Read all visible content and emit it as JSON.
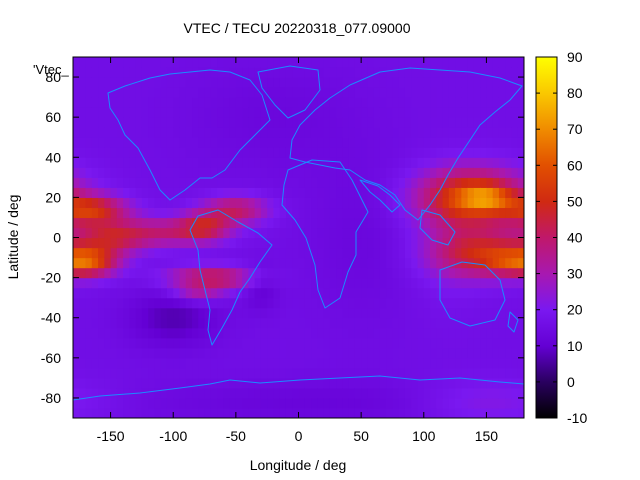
{
  "chart_data": {
    "type": "heatmap",
    "title": "VTEC / TECU 20220318_077.09000",
    "xlabel": "Longitude / deg",
    "ylabel": "Latitude / deg",
    "legend_label": "'Vtec_",
    "xlim": [
      -180,
      180
    ],
    "ylim": [
      -90,
      90
    ],
    "x_ticks": [
      -150,
      -100,
      -50,
      0,
      50,
      100,
      150
    ],
    "y_ticks": [
      -80,
      -60,
      -40,
      -20,
      0,
      20,
      40,
      60,
      80
    ],
    "colorbar": {
      "range": [
        -10,
        90
      ],
      "ticks": [
        -10,
        0,
        10,
        20,
        30,
        40,
        50,
        60,
        70,
        80,
        90
      ],
      "palette": [
        "#000000",
        "#2a0060",
        "#6400d4",
        "#7a18f0",
        "#a818b0",
        "#c0186a",
        "#d02a12",
        "#e25000",
        "#f08c00",
        "#fac800",
        "#ffff00"
      ]
    },
    "background_value": 16,
    "cell_size_deg": 5,
    "regions": [
      {
        "lon": -165,
        "lat": 14,
        "sx": 20,
        "sy": 5,
        "value": 32
      },
      {
        "lon": -168,
        "lat": -12,
        "sx": 16,
        "sy": 5,
        "value": 38
      },
      {
        "lon": -150,
        "lat": 0,
        "sx": 20,
        "sy": 6,
        "value": 24
      },
      {
        "lon": -105,
        "lat": 3,
        "sx": 28,
        "sy": 5,
        "value": 20
      },
      {
        "lon": -75,
        "lat": 6,
        "sx": 14,
        "sy": 5,
        "value": 22
      },
      {
        "lon": -50,
        "lat": 14,
        "sx": 18,
        "sy": 5,
        "value": 24
      },
      {
        "lon": -70,
        "lat": -20,
        "sx": 24,
        "sy": 4,
        "value": 28
      },
      {
        "lon": -80,
        "lat": -28,
        "sx": 14,
        "sy": 3,
        "value": 14
      },
      {
        "lon": 140,
        "lat": 20,
        "sx": 30,
        "sy": 10,
        "value": 42
      },
      {
        "lon": 150,
        "lat": 20,
        "sx": 14,
        "sy": 4,
        "value": 18
      },
      {
        "lon": 150,
        "lat": -8,
        "sx": 28,
        "sy": 8,
        "value": 32
      },
      {
        "lon": 165,
        "lat": -12,
        "sx": 12,
        "sy": 4,
        "value": 12
      },
      {
        "lon": 120,
        "lat": 0,
        "sx": 20,
        "sy": 20,
        "value": 6
      },
      {
        "lon": -100,
        "lat": -40,
        "sx": 25,
        "sy": 10,
        "value": -9
      },
      {
        "lon": -30,
        "lat": -25,
        "sx": 10,
        "sy": 8,
        "value": -6
      },
      {
        "lon": -20,
        "lat": 60,
        "sx": 50,
        "sy": 20,
        "value": -3
      },
      {
        "lon": 30,
        "lat": -82,
        "sx": 120,
        "sy": 8,
        "value": -4
      },
      {
        "lon": 150,
        "lat": -82,
        "sx": 40,
        "sy": 8,
        "value": 8
      },
      {
        "lon": 50,
        "lat": 0,
        "sx": 30,
        "sy": 30,
        "value": -3
      }
    ]
  }
}
